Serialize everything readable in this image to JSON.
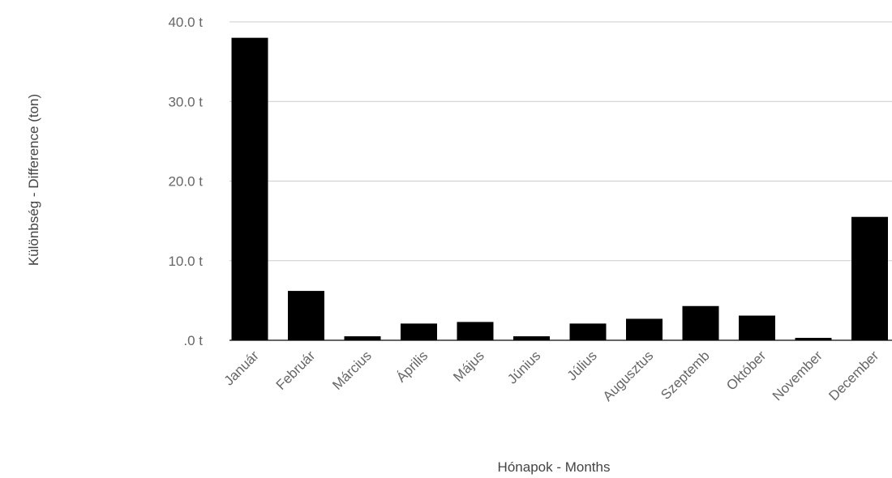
{
  "chart_data": {
    "type": "bar",
    "title": "",
    "xlabel": "Hónapok - Months",
    "ylabel": "Különbség - Difference (ton)",
    "categories": [
      "Január",
      "Február",
      "Március",
      "Április",
      "Május",
      "Június",
      "Július",
      "Augusztus",
      "Szeptemb",
      "Október",
      "November",
      "December"
    ],
    "series": [
      {
        "values": [
          38.0,
          6.2,
          0.5,
          2.1,
          2.3,
          0.5,
          2.1,
          2.7,
          4.3,
          3.1,
          0.3,
          15.5
        ]
      }
    ],
    "ylim": [
      0,
      40
    ],
    "yticks": [
      {
        "value": 0,
        "label": ".0  t"
      },
      {
        "value": 10,
        "label": "10.0  t"
      },
      {
        "value": 20,
        "label": "20.0  t"
      },
      {
        "value": 30,
        "label": "30.0  t"
      },
      {
        "value": 40,
        "label": "40.0  t"
      }
    ],
    "grid": true,
    "legend": "none",
    "bar_color": "#000000",
    "grid_color": "#cccccc"
  }
}
